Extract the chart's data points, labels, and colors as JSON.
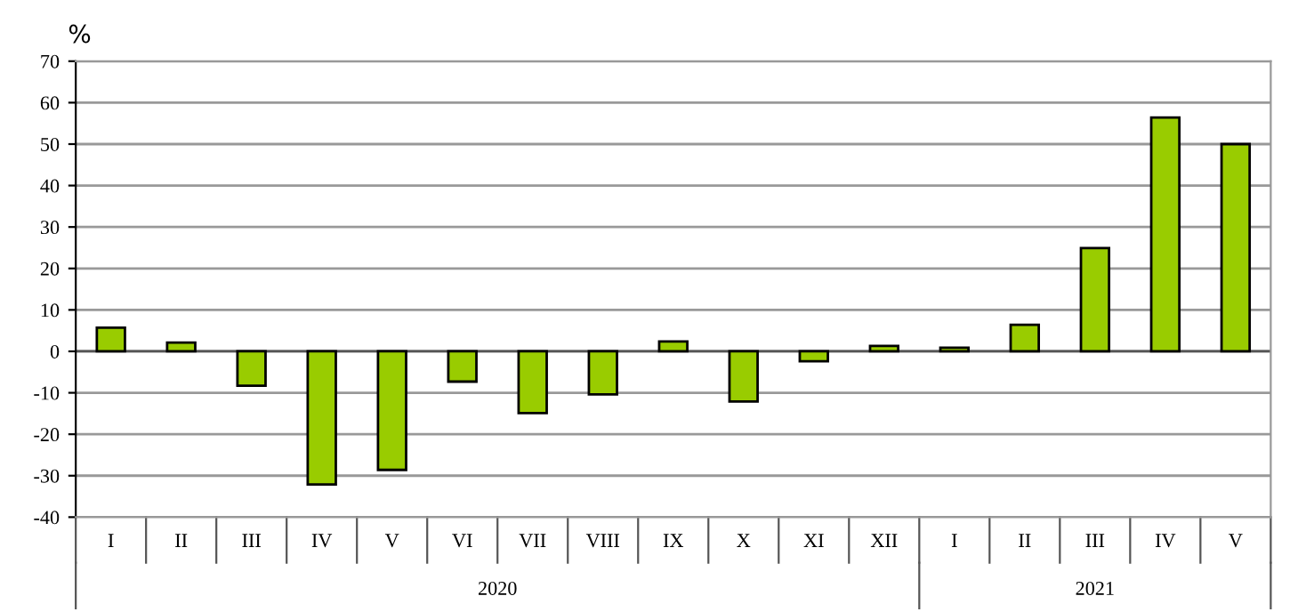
{
  "chart_data": {
    "type": "bar",
    "ylabel": "%",
    "categories": [
      "I",
      "II",
      "III",
      "IV",
      "V",
      "VI",
      "VII",
      "VIII",
      "IX",
      "X",
      "XI",
      "XII",
      "I",
      "II",
      "III",
      "IV",
      "V"
    ],
    "values": [
      5.7,
      2.1,
      -8.3,
      -32.1,
      -28.6,
      -7.3,
      -14.9,
      -10.4,
      2.4,
      -12.1,
      -2.4,
      1.3,
      0.9,
      6.4,
      24.9,
      56.4,
      50
    ],
    "color": "#99cc00",
    "ylim": [
      -40,
      70
    ],
    "yticks": [
      -40,
      -30,
      -20,
      -10,
      0,
      10,
      20,
      30,
      40,
      50,
      60,
      70
    ],
    "grid": "y",
    "annotations": [
      "2020",
      "2021"
    ]
  }
}
